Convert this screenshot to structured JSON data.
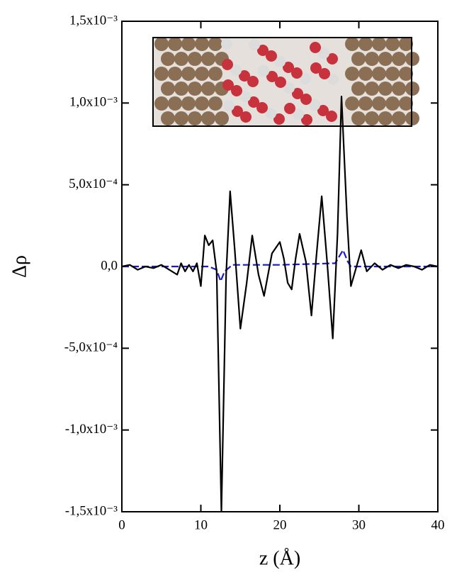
{
  "chart_data": {
    "type": "line",
    "x_label": "z (Å)",
    "y_label": "Δρ",
    "xlim": [
      0,
      40
    ],
    "xticks": [
      0,
      10,
      20,
      30,
      40
    ],
    "ylim": [
      -0.0015,
      0.0015
    ],
    "yticks": [
      {
        "value": -0.0015,
        "label": "-1,5x10⁻³"
      },
      {
        "value": -0.001,
        "label": "-1,0x10⁻³"
      },
      {
        "value": -0.0005,
        "label": "-5,0x10⁻⁴"
      },
      {
        "value": 0,
        "label": "0,0"
      },
      {
        "value": 0.0005,
        "label": "5,0x10⁻⁴"
      },
      {
        "value": 0.001,
        "label": "1,0x10⁻³"
      },
      {
        "value": 0.0015,
        "label": "1,5x10⁻³"
      }
    ],
    "series": [
      {
        "color": "#000000",
        "dash": false,
        "x": [
          0,
          1,
          2,
          3,
          4,
          5,
          6,
          7,
          7.5,
          8,
          8.5,
          9,
          9.5,
          10,
          10.5,
          11,
          11.5,
          12,
          12.6,
          13.2,
          13.7,
          14.3,
          15,
          15.8,
          16.5,
          17.3,
          18,
          19,
          20,
          20.5,
          21,
          21.5,
          22,
          22.5,
          23.3,
          24,
          24.6,
          25.3,
          26,
          26.7,
          27.3,
          27.8,
          28.5,
          29,
          29.7,
          30.3,
          31,
          32,
          33,
          34,
          35,
          36,
          37,
          38,
          39,
          40
        ],
        "values": [
          0,
          1e-05,
          -2e-05,
          0,
          -1e-05,
          1e-05,
          -2e-05,
          -5e-05,
          2e-05,
          -3e-05,
          1e-05,
          -3e-05,
          2e-05,
          -0.00012,
          0.00019,
          0.00013,
          0.00016,
          -3e-05,
          -0.0015,
          -5e-05,
          0.00046,
          0.0001,
          -0.00038,
          -0.0001,
          0.00019,
          -5e-05,
          -0.00018,
          8e-05,
          0.00015,
          5e-05,
          -0.0001,
          -0.00014,
          5e-05,
          0.0002,
          3e-05,
          -0.0003,
          5e-05,
          0.00043,
          2e-05,
          -0.00044,
          0.0002,
          0.00104,
          0.0003,
          -0.00012,
          0,
          0.0001,
          -3e-05,
          2e-05,
          -2e-05,
          1e-05,
          -1e-05,
          1e-05,
          0,
          -2e-05,
          1e-05,
          0
        ]
      },
      {
        "color": "#1a1acc",
        "dash": true,
        "x": [
          0,
          5,
          10,
          11,
          12,
          12.5,
          13,
          14,
          20,
          27,
          28,
          28.6,
          29,
          35,
          40
        ],
        "values": [
          0,
          0,
          0,
          0,
          -2e-05,
          -9e-05,
          -3e-05,
          1e-05,
          1e-05,
          2e-05,
          0.0001,
          3e-05,
          0,
          0,
          0
        ]
      }
    ]
  }
}
